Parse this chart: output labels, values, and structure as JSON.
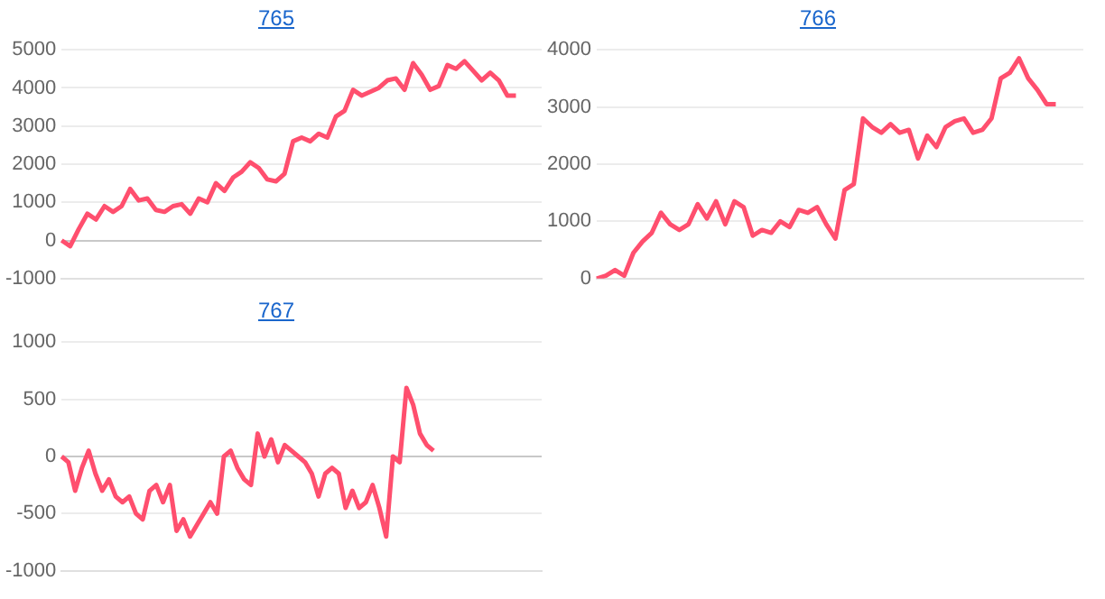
{
  "chart_data": [
    {
      "type": "line",
      "title": "765",
      "categories": [
        null,
        null,
        null,
        null,
        null,
        null,
        null,
        null,
        null,
        null,
        null,
        null,
        null,
        null,
        null,
        null,
        null,
        null,
        null,
        null,
        null,
        null,
        null,
        null,
        null,
        null,
        null,
        null,
        null,
        null,
        null,
        null,
        null,
        null,
        null,
        null,
        null,
        null,
        null,
        null,
        null,
        null,
        null,
        null,
        null,
        null,
        null,
        null,
        null,
        null,
        null,
        null,
        null,
        null,
        null,
        null,
        null
      ],
      "series": [
        {
          "color": "#ff4f6e",
          "values": [
            0,
            -150,
            300,
            700,
            550,
            900,
            750,
            900,
            1350,
            1050,
            1100,
            800,
            750,
            900,
            950,
            700,
            1100,
            1000,
            1500,
            1300,
            1650,
            1800,
            2050,
            1900,
            1600,
            1550,
            1750,
            2600,
            2700,
            2600,
            2800,
            2700,
            3250,
            3400,
            3950,
            3800,
            3900,
            4000,
            4200,
            4250,
            3950,
            4650,
            4350,
            3950,
            4050,
            4600,
            4500,
            4700,
            4450,
            4200,
            4400,
            4200,
            3800,
            3800,
            null,
            null,
            null
          ]
        }
      ],
      "ylim": [
        -1000,
        5000
      ],
      "yticks": [
        -1000,
        0,
        1000,
        2000,
        3000,
        4000,
        5000
      ],
      "grid": "y",
      "legend": false,
      "marker": "none",
      "line_style": "solid",
      "tick_labels": "y"
    },
    {
      "type": "line",
      "title": "766",
      "categories": [
        null,
        null,
        null,
        null,
        null,
        null,
        null,
        null,
        null,
        null,
        null,
        null,
        null,
        null,
        null,
        null,
        null,
        null,
        null,
        null,
        null,
        null,
        null,
        null,
        null,
        null,
        null,
        null,
        null,
        null,
        null,
        null,
        null,
        null,
        null,
        null,
        null,
        null,
        null,
        null,
        null,
        null,
        null,
        null,
        null,
        null,
        null,
        null,
        null,
        null,
        null,
        null,
        null,
        null
      ],
      "series": [
        {
          "color": "#ff4f6e",
          "values": [
            0,
            50,
            150,
            50,
            450,
            650,
            800,
            1150,
            950,
            850,
            950,
            1300,
            1050,
            1350,
            950,
            1350,
            1250,
            750,
            850,
            800,
            1000,
            900,
            1200,
            1150,
            1250,
            950,
            700,
            1550,
            1650,
            2800,
            2650,
            2550,
            2700,
            2550,
            2600,
            2100,
            2500,
            2300,
            2650,
            2750,
            2800,
            2550,
            2600,
            2800,
            3500,
            3600,
            3850,
            3500,
            3300,
            3050,
            3050,
            null,
            null,
            null
          ]
        }
      ],
      "ylim": [
        0,
        4000
      ],
      "yticks": [
        0,
        1000,
        2000,
        3000,
        4000
      ],
      "grid": "y",
      "legend": false,
      "marker": "none",
      "line_style": "solid",
      "tick_labels": "y"
    },
    {
      "type": "line",
      "title": "767",
      "categories": [
        null,
        null,
        null,
        null,
        null,
        null,
        null,
        null,
        null,
        null,
        null,
        null,
        null,
        null,
        null,
        null,
        null,
        null,
        null,
        null,
        null,
        null,
        null,
        null,
        null,
        null,
        null,
        null,
        null,
        null,
        null,
        null,
        null,
        null,
        null,
        null,
        null,
        null,
        null,
        null,
        null,
        null,
        null,
        null,
        null,
        null,
        null,
        null,
        null,
        null,
        null,
        null,
        null,
        null,
        null,
        null,
        null,
        null,
        null,
        null,
        null,
        null,
        null,
        null,
        null,
        null,
        null,
        null,
        null,
        null,
        null,
        null
      ],
      "series": [
        {
          "color": "#ff4f6e",
          "values": [
            0,
            -50,
            -300,
            -100,
            50,
            -150,
            -300,
            -200,
            -350,
            -400,
            -350,
            -500,
            -550,
            -300,
            -250,
            -400,
            -250,
            -650,
            -550,
            -700,
            -600,
            -500,
            -400,
            -500,
            0,
            50,
            -100,
            -200,
            -250,
            200,
            0,
            150,
            -50,
            100,
            50,
            0,
            -50,
            -150,
            -350,
            -150,
            -100,
            -150,
            -450,
            -300,
            -450,
            -400,
            -250,
            -450,
            -700,
            0,
            -50,
            600,
            450,
            200,
            100,
            50,
            null,
            null,
            null,
            null,
            null,
            null,
            null,
            null,
            null,
            null,
            null,
            null,
            null,
            null,
            null,
            null
          ]
        }
      ],
      "ylim": [
        -1000,
        1000
      ],
      "yticks": [
        -1000,
        -500,
        0,
        500,
        1000
      ],
      "grid": "y",
      "legend": false,
      "marker": "none",
      "line_style": "solid",
      "tick_labels": "y"
    }
  ]
}
